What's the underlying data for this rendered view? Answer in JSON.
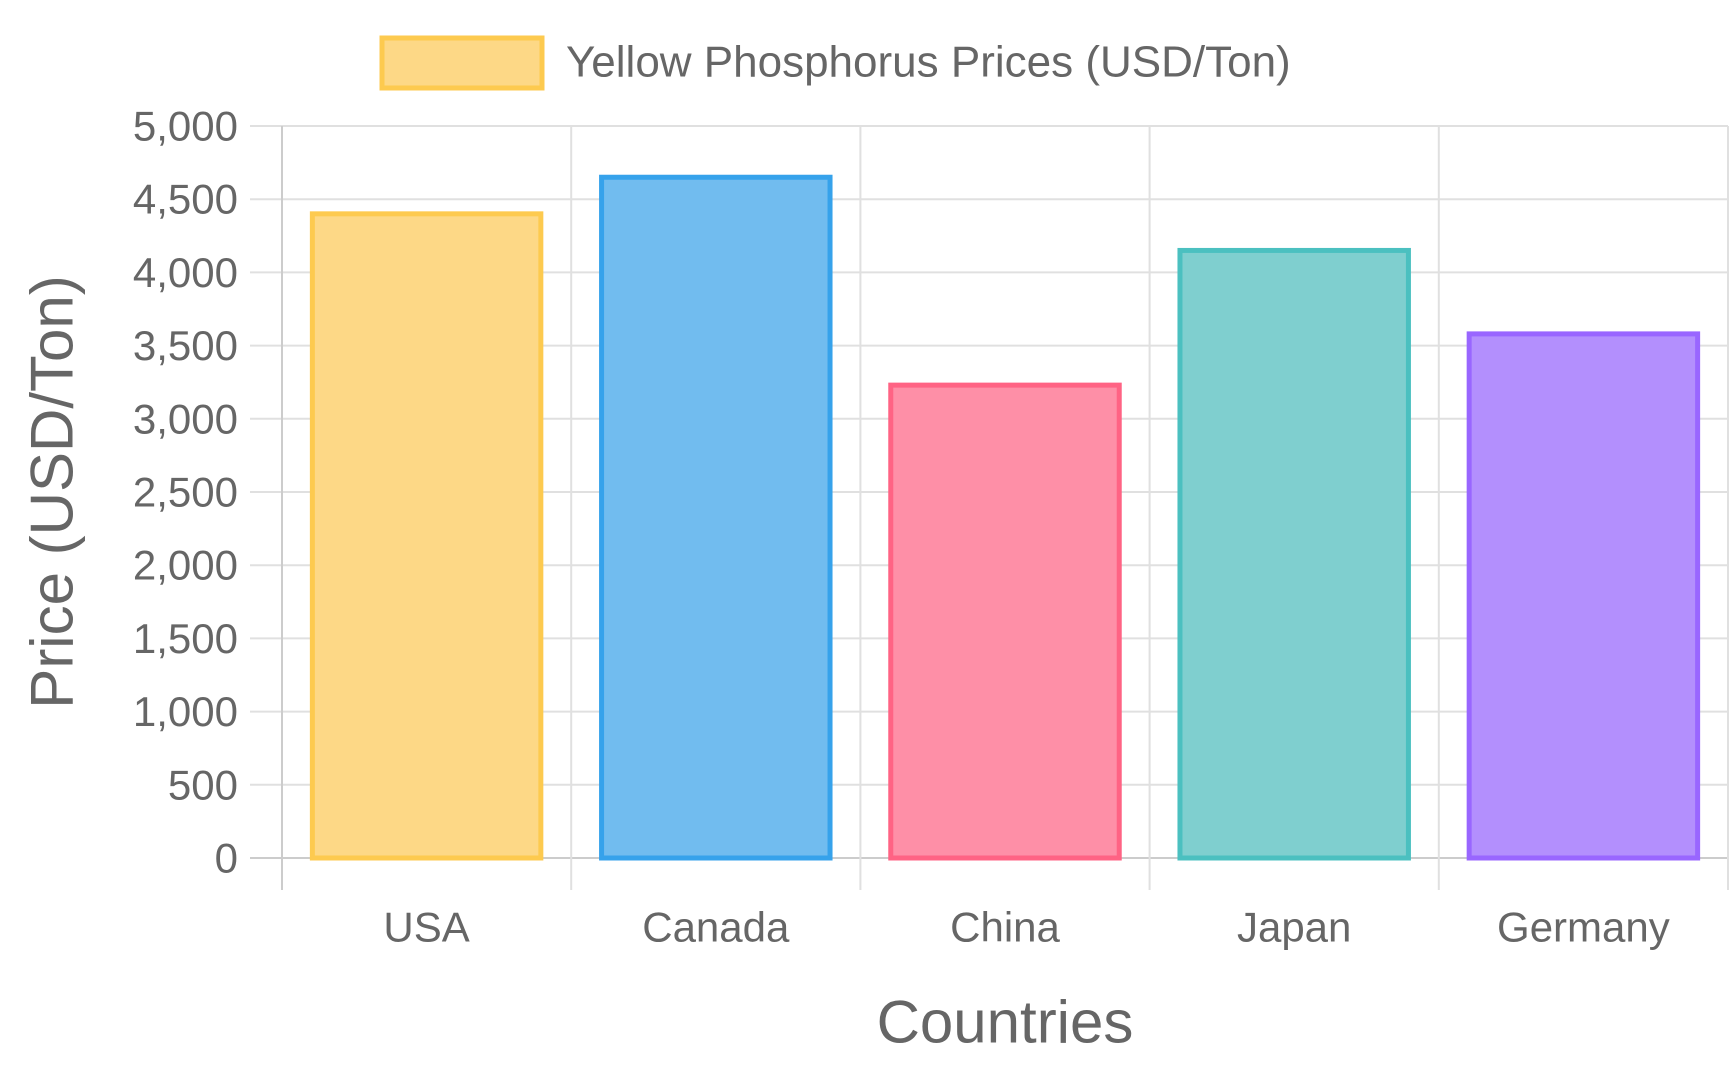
{
  "chart_data": {
    "type": "bar",
    "categories": [
      "USA",
      "Canada",
      "China",
      "Japan",
      "Germany"
    ],
    "series": [
      {
        "name": "Yellow Phosphorus Prices (USD/Ton)",
        "values": [
          4400,
          4650,
          3230,
          4150,
          3580
        ]
      }
    ],
    "xlabel": "Countries",
    "ylabel": "Price (USD/Ton)",
    "ylim": [
      0,
      5000
    ],
    "yticks": [
      0,
      500,
      1000,
      1500,
      2000,
      2500,
      3000,
      3500,
      4000,
      4500,
      5000
    ],
    "grid": true,
    "legend_position": "top",
    "colors": {
      "fills": [
        "#fdd886",
        "#71bcef",
        "#fe8fa7",
        "#7fcfcf",
        "#b38ffd"
      ],
      "borders": [
        "#fdca4f",
        "#36a2eb",
        "#ff6384",
        "#4bc0c0",
        "#9966ff"
      ],
      "grid": "#e0e0e0",
      "text": "#666666"
    }
  }
}
